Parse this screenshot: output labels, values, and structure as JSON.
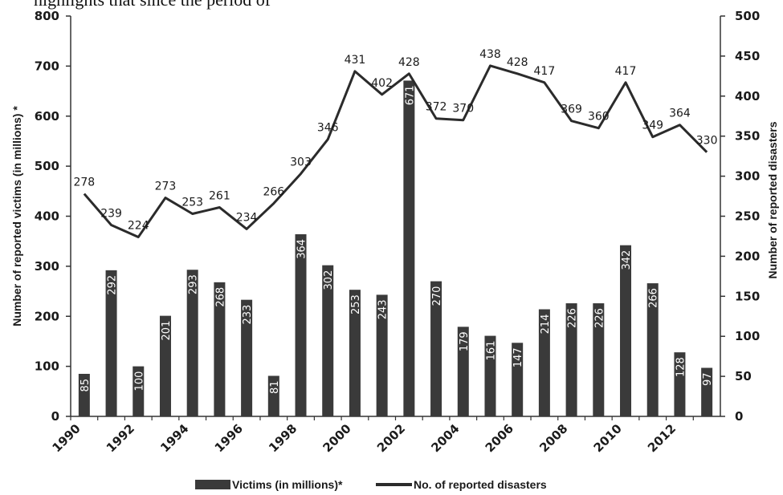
{
  "header_fragment": "highlights that since the period of",
  "chart_data": {
    "type": "bar",
    "categories": [
      "1990",
      "1991",
      "1992",
      "1993",
      "1994",
      "1995",
      "1996",
      "1997",
      "1998",
      "1999",
      "2000",
      "2001",
      "2002",
      "2003",
      "2004",
      "2005",
      "2006",
      "2007",
      "2008",
      "2009",
      "2010",
      "2011",
      "2012",
      "2013"
    ],
    "x_tick_labels": [
      "1990",
      "1992",
      "1994",
      "1996",
      "1998",
      "2000",
      "2002",
      "2004",
      "2006",
      "2008",
      "2010",
      "2012"
    ],
    "series": [
      {
        "name": "Victims (in millions)*",
        "type": "bar",
        "axis": "left",
        "color": "#3a3a3a",
        "values": [
          85,
          292,
          100,
          201,
          293,
          268,
          233,
          81,
          364,
          302,
          253,
          243,
          671,
          270,
          179,
          161,
          147,
          214,
          226,
          226,
          342,
          266,
          128,
          97
        ]
      },
      {
        "name": "No. of reported disasters",
        "type": "line",
        "axis": "right",
        "color": "#2b2b2b",
        "values": [
          278,
          239,
          224,
          273,
          253,
          261,
          234,
          266,
          303,
          346,
          431,
          402,
          428,
          372,
          370,
          438,
          428,
          417,
          369,
          360,
          417,
          349,
          364,
          330
        ]
      }
    ],
    "ylabel_left": "Number of reported victims (in millions) *",
    "ylabel_right": "Number of reported disasters",
    "ylim_left": [
      0,
      800
    ],
    "ylim_right": [
      0,
      500
    ],
    "yticks_left": [
      "0",
      "100",
      "200",
      "300",
      "400",
      "500",
      "600",
      "700",
      "800"
    ],
    "yticks_right": [
      "0",
      "50",
      "100",
      "150",
      "200",
      "250",
      "300",
      "350",
      "400",
      "450",
      "500"
    ],
    "legend": [
      "Victims (in millions)*",
      "No. of reported disasters"
    ],
    "legend_position": "bottom",
    "grid": false
  }
}
